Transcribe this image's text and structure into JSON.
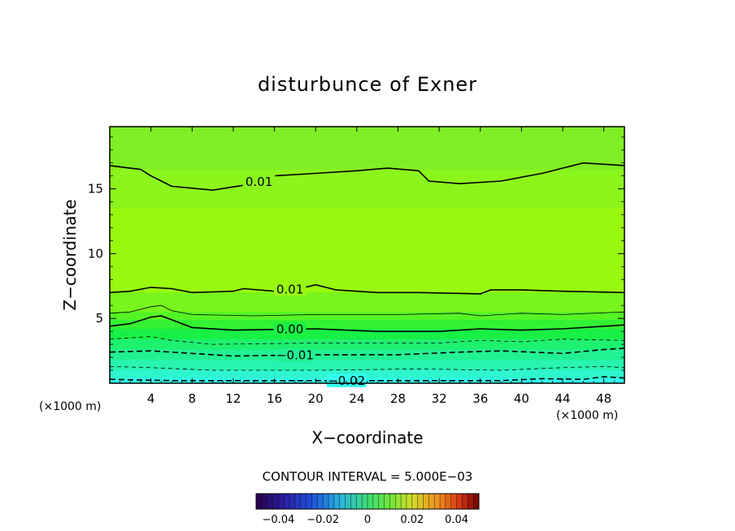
{
  "chart_data": {
    "type": "heatmap",
    "title": "disturbunce of Exner",
    "xlabel": "X−coordinate",
    "ylabel": "Z−coordinate",
    "x_unit": "(×1000 m)",
    "y_unit": "(×1000 m)",
    "xlim": [
      0,
      50
    ],
    "ylim": [
      0,
      19.8
    ],
    "x_ticks": [
      4,
      8,
      12,
      16,
      20,
      24,
      28,
      32,
      36,
      40,
      44,
      48
    ],
    "y_ticks": [
      5,
      10,
      15
    ],
    "contour_interval_text": "CONTOUR INTERVAL = 5.000E−03",
    "colorbar": {
      "min": -0.05,
      "max": 0.05,
      "ticks": [
        {
          "value": -0.04,
          "label": "−0.04"
        },
        {
          "value": -0.02,
          "label": "−0.02"
        },
        {
          "value": 0,
          "label": "0"
        },
        {
          "value": 0.02,
          "label": "0.02"
        },
        {
          "value": 0.04,
          "label": "0.04"
        }
      ]
    },
    "color_bands": [
      {
        "top_z": 0.4,
        "color": "#33ffee"
      },
      {
        "top_z": 1.0,
        "color": "#2ef6cc"
      },
      {
        "top_z": 1.8,
        "color": "#28f3b0"
      },
      {
        "top_z": 2.6,
        "color": "#22f192"
      },
      {
        "top_z": 3.4,
        "color": "#1ef070"
      },
      {
        "top_z": 4.2,
        "color": "#18f045"
      },
      {
        "top_z": 4.9,
        "color": "#33f233"
      },
      {
        "top_z": 5.5,
        "color": "#55f425"
      },
      {
        "top_z": 7.0,
        "color": "#77f51c"
      },
      {
        "top_z": 13.5,
        "color": "#99fa10"
      },
      {
        "top_z": 16.5,
        "color": "#8cf51c"
      },
      {
        "top_z": 19.8,
        "color": "#80ee25"
      }
    ],
    "contours": [
      {
        "level": 0.01,
        "label": "0.01",
        "style": "solid",
        "label_x": 14.5,
        "points": [
          [
            0,
            16.8
          ],
          [
            3,
            16.5
          ],
          [
            4,
            16.0
          ],
          [
            6,
            15.2
          ],
          [
            10,
            14.9
          ],
          [
            14,
            15.4
          ],
          [
            16,
            16.0
          ],
          [
            20,
            16.2
          ],
          [
            24,
            16.4
          ],
          [
            27,
            16.6
          ],
          [
            30,
            16.4
          ],
          [
            31,
            15.6
          ],
          [
            34,
            15.4
          ],
          [
            38,
            15.6
          ],
          [
            42,
            16.2
          ],
          [
            46,
            17.0
          ],
          [
            50,
            16.8
          ]
        ]
      },
      {
        "level": 0.01,
        "label": "0.01",
        "style": "solid",
        "label_x": 17.5,
        "points": [
          [
            0,
            7.0
          ],
          [
            2,
            7.1
          ],
          [
            4,
            7.4
          ],
          [
            6,
            7.3
          ],
          [
            8,
            7.0
          ],
          [
            12,
            7.1
          ],
          [
            13,
            7.3
          ],
          [
            16,
            7.1
          ],
          [
            19,
            7.4
          ],
          [
            20,
            7.6
          ],
          [
            22,
            7.2
          ],
          [
            26,
            7.0
          ],
          [
            30,
            7.0
          ],
          [
            36,
            6.9
          ],
          [
            37,
            7.2
          ],
          [
            40,
            7.2
          ],
          [
            44,
            7.1
          ],
          [
            50,
            7.0
          ]
        ]
      },
      {
        "level": 0.005,
        "label": "",
        "style": "thin",
        "points": [
          [
            0,
            5.4
          ],
          [
            2,
            5.5
          ],
          [
            4,
            5.9
          ],
          [
            5,
            6.0
          ],
          [
            6,
            5.6
          ],
          [
            8,
            5.3
          ],
          [
            14,
            5.2
          ],
          [
            20,
            5.3
          ],
          [
            28,
            5.3
          ],
          [
            34,
            5.4
          ],
          [
            36,
            5.2
          ],
          [
            40,
            5.4
          ],
          [
            44,
            5.3
          ],
          [
            50,
            5.5
          ]
        ]
      },
      {
        "level": 0.0,
        "label": "0.00",
        "style": "solid",
        "label_x": 17.5,
        "points": [
          [
            0,
            4.4
          ],
          [
            2,
            4.6
          ],
          [
            4,
            5.1
          ],
          [
            5,
            5.2
          ],
          [
            6,
            4.9
          ],
          [
            8,
            4.3
          ],
          [
            12,
            4.1
          ],
          [
            20,
            4.2
          ],
          [
            26,
            4.0
          ],
          [
            32,
            4.0
          ],
          [
            36,
            4.2
          ],
          [
            40,
            4.1
          ],
          [
            44,
            4.2
          ],
          [
            50,
            4.5
          ]
        ]
      },
      {
        "level": -0.005,
        "label": "",
        "style": "thin-dashed",
        "points": [
          [
            0,
            3.4
          ],
          [
            4,
            3.6
          ],
          [
            6,
            3.3
          ],
          [
            10,
            3.0
          ],
          [
            20,
            3.1
          ],
          [
            32,
            3.1
          ],
          [
            36,
            3.3
          ],
          [
            40,
            3.2
          ],
          [
            44,
            3.4
          ],
          [
            50,
            3.3
          ]
        ]
      },
      {
        "level": -0.01,
        "label": "−0.01",
        "style": "dashed",
        "label_x": 18,
        "points": [
          [
            0,
            2.4
          ],
          [
            4,
            2.5
          ],
          [
            8,
            2.3
          ],
          [
            12,
            2.1
          ],
          [
            20,
            2.2
          ],
          [
            28,
            2.2
          ],
          [
            34,
            2.4
          ],
          [
            38,
            2.5
          ],
          [
            44,
            2.3
          ],
          [
            48,
            2.6
          ],
          [
            50,
            2.7
          ]
        ]
      },
      {
        "level": -0.015,
        "label": "",
        "style": "thin-dashed",
        "points": [
          [
            0,
            1.3
          ],
          [
            4,
            1.2
          ],
          [
            10,
            1.0
          ],
          [
            20,
            1.0
          ],
          [
            30,
            1.1
          ],
          [
            38,
            1.0
          ],
          [
            44,
            1.2
          ],
          [
            48,
            1.3
          ],
          [
            50,
            1.2
          ]
        ]
      },
      {
        "level": -0.02,
        "label": "−0.02",
        "style": "dashed",
        "label_x": 23,
        "points": [
          [
            0,
            0.3
          ],
          [
            6,
            0.2
          ],
          [
            12,
            0.2
          ],
          [
            18,
            0.2
          ],
          [
            24,
            0.2
          ],
          [
            30,
            0.2
          ],
          [
            38,
            0.2
          ],
          [
            42,
            0.35
          ],
          [
            46,
            0.3
          ],
          [
            48,
            0.5
          ],
          [
            50,
            0.4
          ]
        ]
      }
    ]
  }
}
